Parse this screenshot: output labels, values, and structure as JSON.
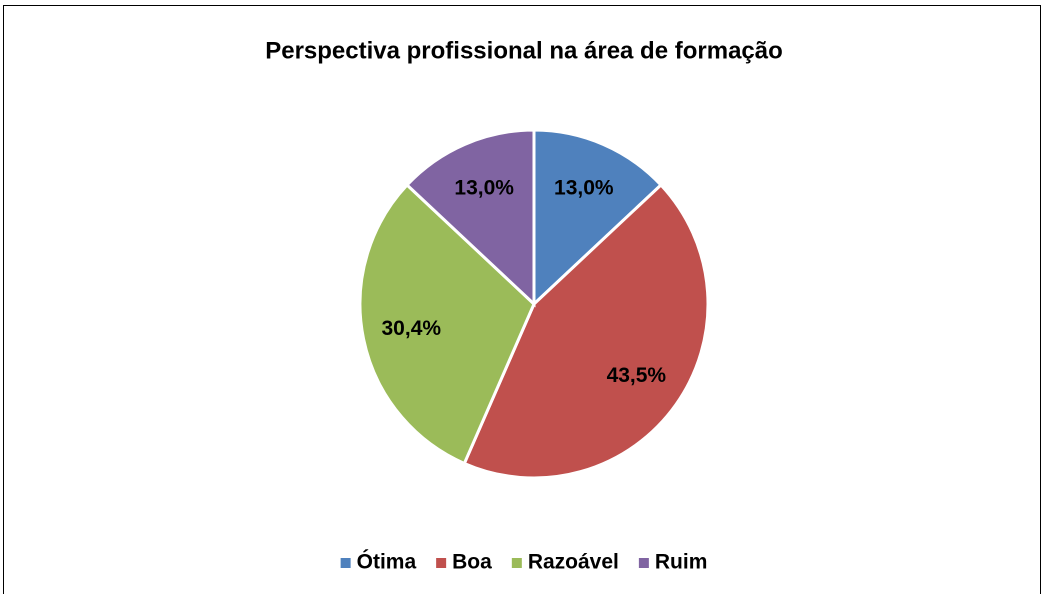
{
  "chart_data": {
    "type": "pie",
    "title": "Perspectiva profissional na área de formação",
    "categories": [
      "Ótima",
      "Boa",
      "Razoável",
      "Ruim"
    ],
    "values": [
      13.0,
      43.5,
      30.4,
      13.0
    ],
    "value_labels": [
      "13,0%",
      "43,5%",
      "30,4%",
      "13,0%"
    ],
    "colors": [
      "#4f81bd",
      "#c0504d",
      "#9bbb59",
      "#8064a2"
    ],
    "legend": "bottom"
  }
}
